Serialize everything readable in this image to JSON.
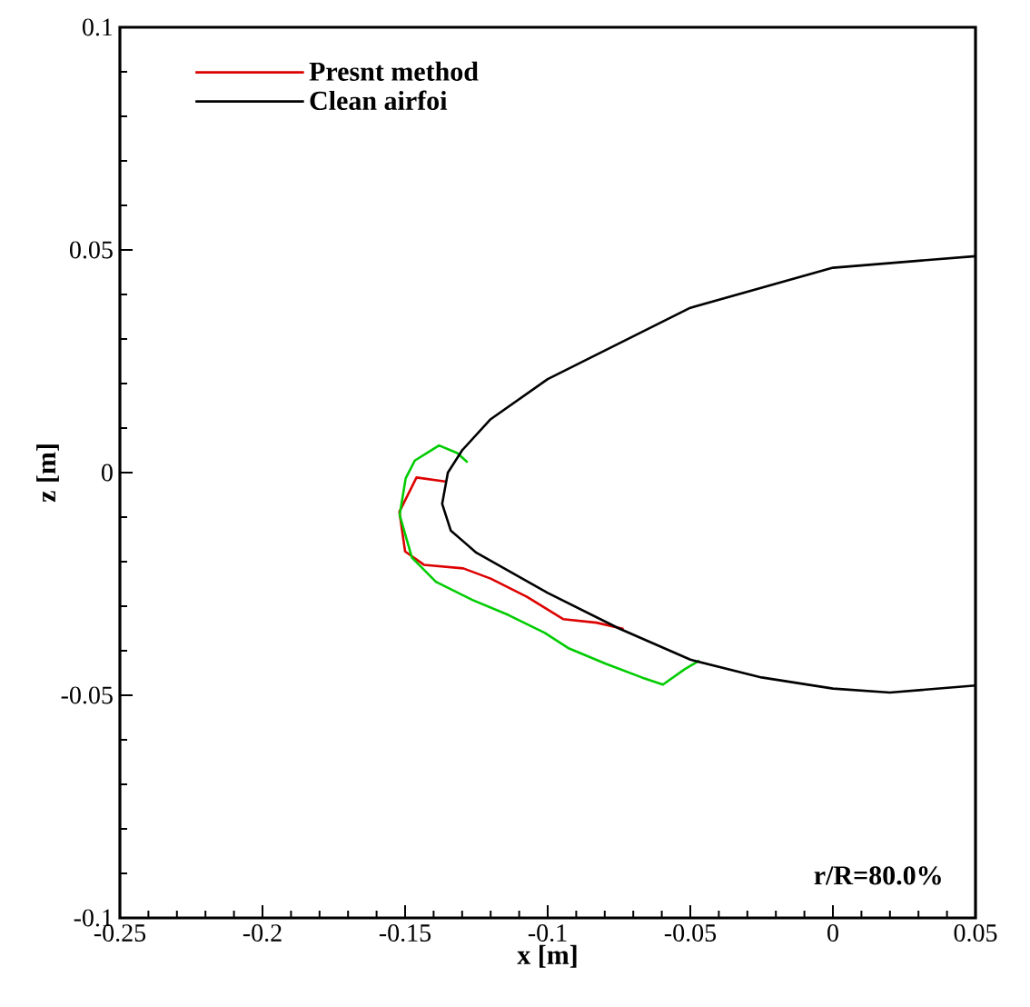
{
  "chart_data": {
    "type": "line",
    "xlabel": "x [m]",
    "ylabel": "z [m]",
    "xlim": [
      -0.25,
      0.05
    ],
    "ylim": [
      -0.1,
      0.1
    ],
    "xticks": [
      -0.25,
      -0.2,
      -0.15,
      -0.1,
      -0.05,
      0,
      0.05
    ],
    "yticks": [
      -0.1,
      -0.05,
      0,
      0.05,
      0.1
    ],
    "grid": false,
    "legend": "top left",
    "marker": "none",
    "line_style": "solid",
    "annotations": [
      "r/R=80.0%"
    ],
    "series": [
      {
        "name": "Presnt method",
        "color": "#dd0000",
        "x": [
          -0.136,
          -0.146,
          -0.152,
          -0.15,
          -0.1434,
          -0.1296,
          -0.12,
          -0.1073,
          -0.0946,
          -0.0829,
          -0.0734
        ],
        "values": [
          -0.002,
          -0.0011,
          -0.0088,
          -0.0177,
          -0.0207,
          -0.0215,
          -0.0238,
          -0.0279,
          -0.0329,
          -0.0337,
          -0.0351
        ]
      },
      {
        "color": "#00cc00",
        "x": [
          -0.1281,
          -0.1317,
          -0.1381,
          -0.1413,
          -0.1466,
          -0.1498,
          -0.1519,
          -0.1476,
          -0.1392,
          -0.1264,
          -0.1137,
          -0.101,
          -0.0925,
          -0.0797,
          -0.067,
          -0.0596,
          -0.0521,
          -0.0468
        ],
        "values": [
          0.0023,
          0.0044,
          0.0061,
          0.0048,
          0.0027,
          -0.0013,
          -0.0095,
          -0.0191,
          -0.0245,
          -0.0286,
          -0.032,
          -0.036,
          -0.0395,
          -0.0429,
          -0.046,
          -0.0476,
          -0.0442,
          -0.0422
        ]
      },
      {
        "name": "Clean airfoi",
        "color": "#000000",
        "x": [
          0.05,
          0,
          -0.05,
          -0.1,
          -0.12,
          -0.13,
          -0.135,
          -0.137,
          -0.134,
          -0.125,
          -0.1,
          -0.075,
          -0.05,
          -0.025,
          0,
          0.02,
          0.05
        ],
        "values": [
          0.0486,
          0.046,
          0.037,
          0.021,
          0.012,
          0.005,
          0,
          -0.007,
          -0.013,
          -0.018,
          -0.027,
          -0.035,
          -0.042,
          -0.046,
          -0.0485,
          -0.0494,
          -0.0478
        ]
      }
    ]
  }
}
